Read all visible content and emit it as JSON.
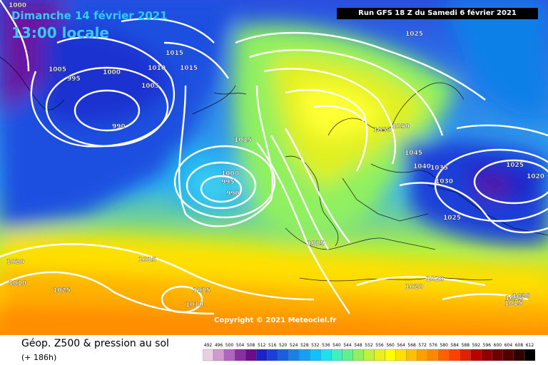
{
  "header": {
    "date": "Dimanche 14 février 2021",
    "time": "13:00 locale",
    "run": "Run GFS 18 Z du Samedi 6 février 2021"
  },
  "watermark": "Copyright © 2021 Meteociel.fr",
  "footer": {
    "product": "Géop. Z500 & pression au sol",
    "lead_time": "(+ 186h)"
  },
  "scale": {
    "values": [
      492,
      496,
      500,
      504,
      508,
      512,
      516,
      520,
      524,
      528,
      532,
      536,
      540,
      544,
      548,
      552,
      556,
      560,
      564,
      568,
      572,
      576,
      580,
      584,
      588,
      592,
      596,
      600,
      604,
      608,
      612
    ],
    "colors": [
      "#e8d0e0",
      "#d09bcf",
      "#b066c0",
      "#8a2fa0",
      "#6a0f88",
      "#1a22c8",
      "#1a40d8",
      "#1a5ee0",
      "#1a80e8",
      "#18a0f0",
      "#10c0ff",
      "#20e0f0",
      "#40f0c0",
      "#60f090",
      "#90f060",
      "#c0f040",
      "#e8f020",
      "#ffff00",
      "#ffe000",
      "#ffc000",
      "#ffa000",
      "#ff8800",
      "#ff6000",
      "#ff4000",
      "#e02000",
      "#b80000",
      "#900000",
      "#700000",
      "#500000",
      "#300000",
      "#000000"
    ]
  },
  "isobar_labels": [
    "1000",
    "1005",
    "995",
    "1000",
    "1015",
    "1010",
    "1015",
    "1005",
    "990",
    "1015",
    "1000",
    "995",
    "990",
    "1025",
    "1050",
    "1050",
    "1045",
    "1040",
    "1035",
    "1030",
    "1025",
    "1020",
    "1025",
    "1015",
    "1020",
    "1025",
    "1015",
    "1010",
    "1020",
    "1020",
    "1015",
    "1015",
    "1020",
    "1015",
    "1010"
  ]
}
